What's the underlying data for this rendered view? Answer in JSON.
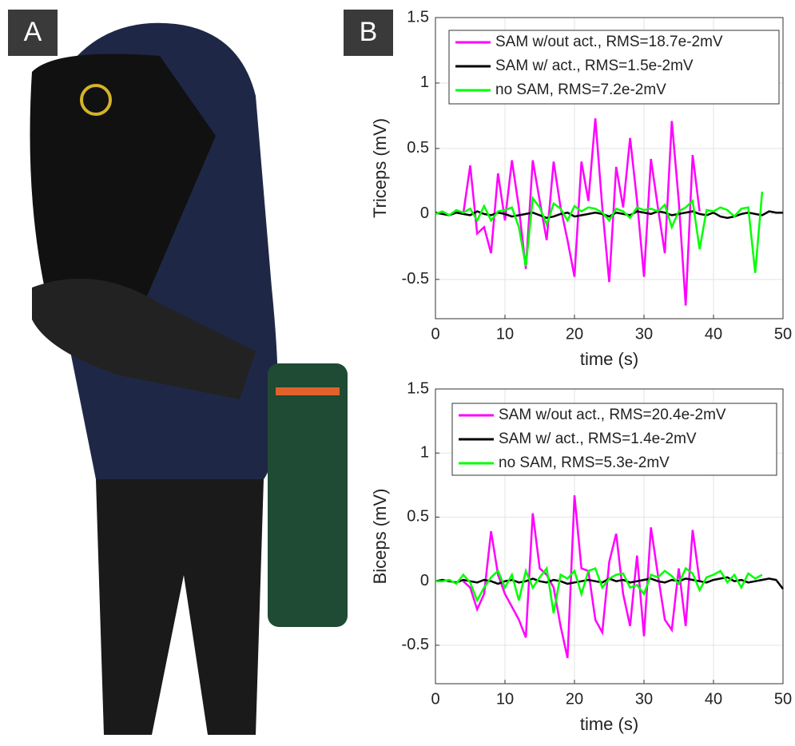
{
  "panels": [
    "A",
    "B"
  ],
  "chart_data": [
    {
      "type": "line",
      "ylabel": "Triceps (mV)",
      "xlabel": "time (s)",
      "x": [
        0,
        1,
        2,
        3,
        4,
        5,
        6,
        7,
        8,
        9,
        10,
        11,
        12,
        13,
        14,
        15,
        16,
        17,
        18,
        19,
        20,
        21,
        22,
        23,
        24,
        25,
        26,
        27,
        28,
        29,
        30,
        31,
        32,
        33,
        34,
        35,
        36,
        37,
        38,
        39,
        40,
        41,
        42,
        43,
        44,
        45,
        46,
        47,
        48,
        49,
        50
      ],
      "xlim": [
        0,
        50
      ],
      "ylim": [
        -0.8,
        1.5
      ],
      "xticks": [
        0,
        10,
        20,
        30,
        40,
        50
      ],
      "yticks": [
        -0.5,
        0,
        0.5,
        1,
        1.5
      ],
      "grid": true,
      "series": [
        {
          "name": "SAM w/out act., RMS=18.7e-2mV",
          "color": "#ff00ff",
          "values": [
            null,
            null,
            null,
            null,
            0,
            0.37,
            -0.15,
            -0.1,
            -0.3,
            0.31,
            -0.05,
            0.41,
            0.05,
            -0.42,
            0.41,
            0.1,
            -0.2,
            0.4,
            0.05,
            -0.2,
            -0.48,
            0.4,
            0.1,
            0.73,
            0.05,
            -0.52,
            0.36,
            0.05,
            0.58,
            0.1,
            -0.48,
            0.42,
            0.05,
            -0.3,
            0.71,
            0.1,
            -0.7,
            0.45,
            0.02,
            null,
            null,
            null,
            null,
            null,
            null,
            null,
            null,
            null,
            null,
            null,
            null
          ]
        },
        {
          "name": "SAM w/ act., RMS=1.5e-2mV",
          "color": "#000000",
          "values": [
            0.01,
            0,
            -0.01,
            0.01,
            0,
            -0.01,
            0.02,
            0,
            -0.01,
            0.01,
            0,
            -0.02,
            -0.01,
            0,
            0.01,
            -0.01,
            -0.03,
            -0.02,
            0,
            0.01,
            -0.02,
            -0.01,
            0,
            0.01,
            0,
            -0.02,
            0.01,
            0,
            -0.01,
            0.02,
            0.01,
            0,
            0.02,
            0.01,
            -0.01,
            0,
            0.01,
            0.02,
            0,
            -0.01,
            0.01,
            -0.02,
            -0.03,
            -0.02,
            0,
            0.01,
            0,
            -0.01,
            0.02,
            0.01,
            0.01
          ]
        },
        {
          "name": "no SAM, RMS=7.2e-2mV",
          "color": "#00ff00",
          "values": [
            0,
            0.02,
            -0.01,
            0.03,
            0.01,
            0.04,
            -0.05,
            0.06,
            -0.05,
            0.02,
            0.03,
            0.05,
            -0.1,
            -0.4,
            0.12,
            0.05,
            -0.08,
            0.08,
            0.04,
            -0.05,
            0.06,
            0.02,
            0.05,
            0.04,
            0.01,
            -0.05,
            0.04,
            0.02,
            -0.03,
            0.05,
            0.03,
            0.04,
            0.02,
            0.07,
            -0.1,
            0.02,
            0.05,
            0.1,
            -0.27,
            0.03,
            0.02,
            0.05,
            0.03,
            -0.02,
            0.04,
            0.05,
            -0.45,
            0.17,
            null,
            null,
            null
          ]
        }
      ]
    },
    {
      "type": "line",
      "ylabel": "Biceps (mV)",
      "xlabel": "time (s)",
      "x": [
        0,
        1,
        2,
        3,
        4,
        5,
        6,
        7,
        8,
        9,
        10,
        11,
        12,
        13,
        14,
        15,
        16,
        17,
        18,
        19,
        20,
        21,
        22,
        23,
        24,
        25,
        26,
        27,
        28,
        29,
        30,
        31,
        32,
        33,
        34,
        35,
        36,
        37,
        38,
        39,
        40,
        41,
        42,
        43,
        44,
        45,
        46,
        47,
        48,
        49,
        50
      ],
      "xlim": [
        0,
        50
      ],
      "ylim": [
        -0.8,
        1.5
      ],
      "xticks": [
        0,
        10,
        20,
        30,
        40,
        50
      ],
      "yticks": [
        -0.5,
        0,
        0.5,
        1,
        1.5
      ],
      "grid": true,
      "series": [
        {
          "name": "SAM w/out act., RMS=20.4e-2mV",
          "color": "#ff00ff",
          "values": [
            null,
            null,
            null,
            null,
            0,
            -0.05,
            -0.22,
            -0.1,
            0.39,
            0.05,
            -0.1,
            -0.2,
            -0.3,
            -0.44,
            0.53,
            0.1,
            0.05,
            -0.05,
            -0.35,
            -0.6,
            0.67,
            0.1,
            0.08,
            -0.3,
            -0.4,
            0.15,
            0.37,
            -0.1,
            -0.35,
            0.2,
            -0.43,
            0.42,
            0.05,
            -0.3,
            -0.38,
            0.1,
            -0.35,
            0.4,
            0,
            null,
            null,
            null,
            null,
            null,
            null,
            null,
            null,
            null,
            null,
            null,
            null
          ]
        },
        {
          "name": "SAM w/ act., RMS=1.4e-2mV",
          "color": "#000000",
          "values": [
            0,
            0.01,
            0,
            -0.01,
            0.01,
            0,
            -0.01,
            0.01,
            0,
            -0.02,
            0,
            0.01,
            -0.01,
            0,
            0.02,
            0,
            -0.01,
            0.01,
            0,
            -0.02,
            -0.01,
            0,
            0.01,
            0,
            -0.01,
            0.02,
            0,
            0.01,
            -0.01,
            0,
            0.01,
            0.02,
            0,
            -0.01,
            0.01,
            0,
            0.02,
            0.01,
            0,
            -0.01,
            0.01,
            0.02,
            0.03,
            0,
            0.01,
            -0.01,
            0,
            0.01,
            0.02,
            0.01,
            -0.06
          ]
        },
        {
          "name": "no SAM, RMS=5.3e-2mV",
          "color": "#00ff00",
          "values": [
            0,
            0,
            0.01,
            -0.02,
            0.05,
            -0.01,
            -0.15,
            -0.05,
            0.03,
            0.08,
            -0.05,
            0.05,
            -0.15,
            0.08,
            -0.05,
            0.03,
            0.1,
            -0.25,
            0.05,
            0.02,
            0.08,
            -0.1,
            0.08,
            0.1,
            -0.05,
            0.02,
            0.05,
            0.06,
            -0.05,
            -0.03,
            -0.1,
            0.05,
            0.03,
            0.08,
            0.04,
            -0.02,
            0.1,
            0.06,
            -0.07,
            0.03,
            0.05,
            0.08,
            -0.01,
            0.05,
            -0.05,
            0.06,
            0.02,
            0.05,
            null,
            null,
            null
          ]
        }
      ]
    }
  ]
}
